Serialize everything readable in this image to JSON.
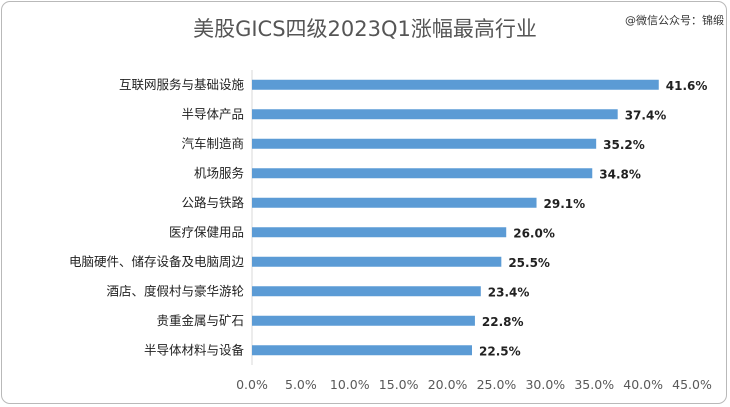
{
  "watermark": "@微信公众号：锦缎",
  "chart_data": {
    "type": "bar",
    "orientation": "horizontal",
    "title": "美股GICS四级2023Q1涨幅最高行业",
    "categories": [
      "互联网服务与基础设施",
      "半导体产品",
      "汽车制造商",
      "机场服务",
      "公路与铁路",
      "医疗保健用品",
      "电脑硬件、储存设备及电脑周边",
      "酒店、度假村与豪华游轮",
      "贵重金属与矿石",
      "半导体材料与设备"
    ],
    "values": [
      41.6,
      37.4,
      35.2,
      34.8,
      29.1,
      26.0,
      25.5,
      23.4,
      22.8,
      22.5
    ],
    "value_labels": [
      "41.6%",
      "37.4%",
      "35.2%",
      "34.8%",
      "29.1%",
      "26.0%",
      "25.5%",
      "23.4%",
      "22.8%",
      "22.5%"
    ],
    "xlim": [
      0,
      45
    ],
    "xticks": [
      "0.0%",
      "5.0%",
      "10.0%",
      "15.0%",
      "20.0%",
      "25.0%",
      "30.0%",
      "35.0%",
      "40.0%",
      "45.0%"
    ],
    "bar_color": "#5b9bd5",
    "grid": false,
    "xlabel": "",
    "ylabel": ""
  }
}
